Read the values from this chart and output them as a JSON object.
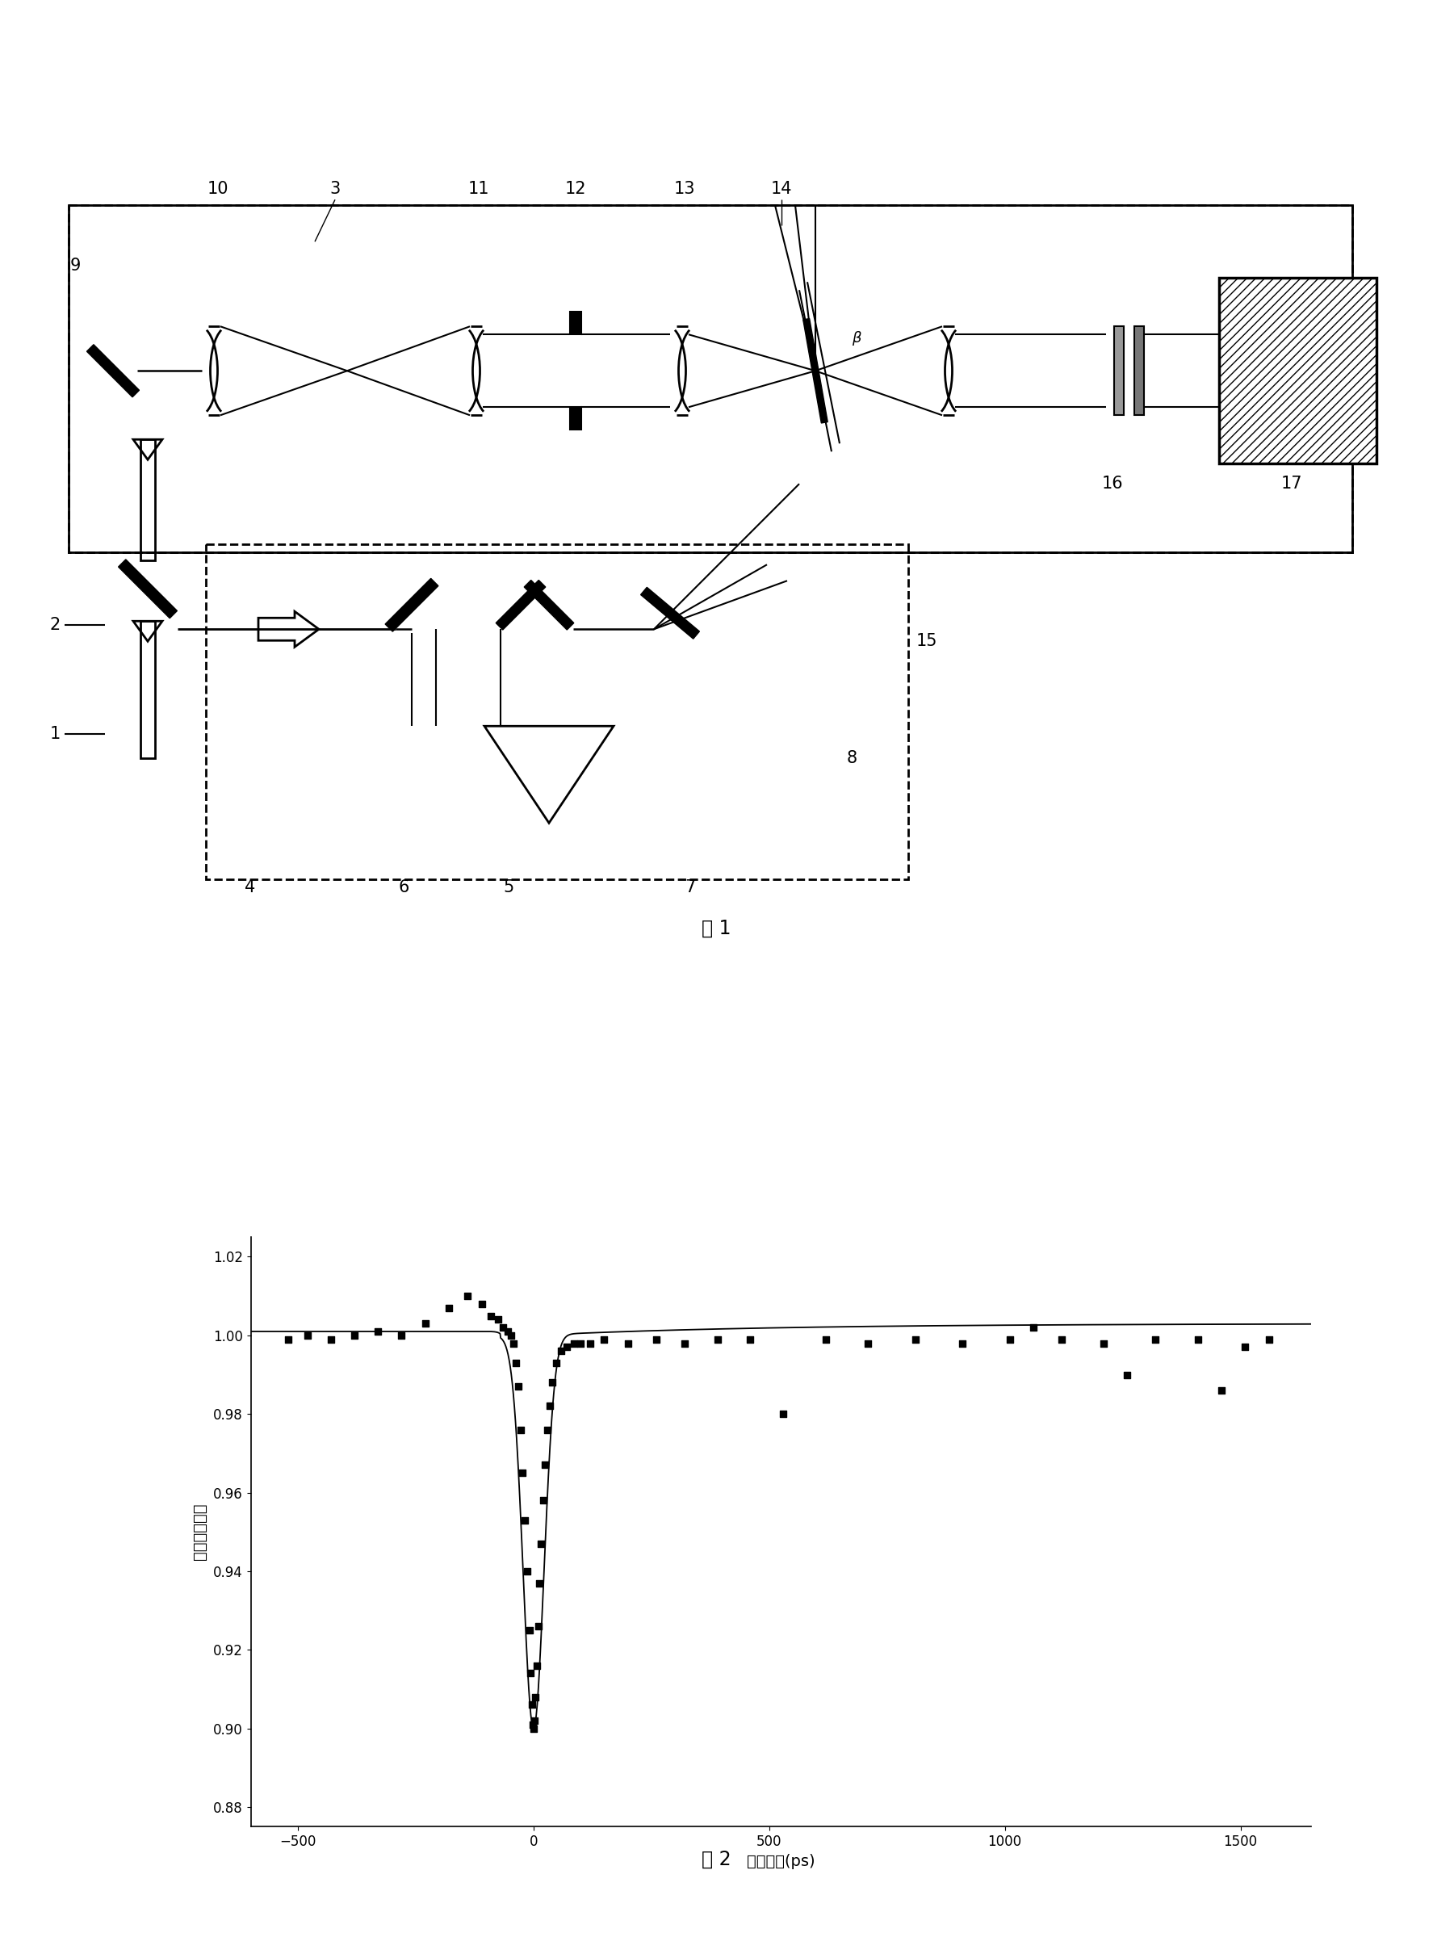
{
  "fig1_label": "图 1",
  "fig2_label": "图 2",
  "graph_xlabel": "延迟时间(ps)",
  "graph_ylabel": "归一化透射率",
  "graph_xticks": [
    -500,
    0,
    500,
    1000,
    1500
  ],
  "graph_yticks": [
    0.88,
    0.9,
    0.92,
    0.94,
    0.96,
    0.98,
    1.0,
    1.02
  ],
  "graph_xlim": [
    -600,
    1650
  ],
  "graph_ylim": [
    0.875,
    1.025
  ],
  "scatter_data": [
    [
      -520,
      0.999
    ],
    [
      -480,
      1.0
    ],
    [
      -430,
      0.999
    ],
    [
      -380,
      1.0
    ],
    [
      -330,
      1.001
    ],
    [
      -280,
      1.0
    ],
    [
      -230,
      1.003
    ],
    [
      -180,
      1.007
    ],
    [
      -140,
      1.01
    ],
    [
      -110,
      1.008
    ],
    [
      -90,
      1.005
    ],
    [
      -75,
      1.004
    ],
    [
      -65,
      1.002
    ],
    [
      -55,
      1.001
    ],
    [
      -48,
      1.0
    ],
    [
      -42,
      0.998
    ],
    [
      -37,
      0.993
    ],
    [
      -33,
      0.987
    ],
    [
      -28,
      0.976
    ],
    [
      -23,
      0.965
    ],
    [
      -18,
      0.953
    ],
    [
      -13,
      0.94
    ],
    [
      -9,
      0.925
    ],
    [
      -6,
      0.914
    ],
    [
      -3,
      0.906
    ],
    [
      -1,
      0.901
    ],
    [
      0,
      0.9
    ],
    [
      2,
      0.902
    ],
    [
      4,
      0.908
    ],
    [
      7,
      0.916
    ],
    [
      10,
      0.926
    ],
    [
      13,
      0.937
    ],
    [
      16,
      0.947
    ],
    [
      20,
      0.958
    ],
    [
      24,
      0.967
    ],
    [
      29,
      0.976
    ],
    [
      34,
      0.982
    ],
    [
      40,
      0.988
    ],
    [
      48,
      0.993
    ],
    [
      58,
      0.996
    ],
    [
      70,
      0.997
    ],
    [
      85,
      0.998
    ],
    [
      100,
      0.998
    ],
    [
      120,
      0.998
    ],
    [
      150,
      0.999
    ],
    [
      200,
      0.998
    ],
    [
      260,
      0.999
    ],
    [
      320,
      0.998
    ],
    [
      390,
      0.999
    ],
    [
      460,
      0.999
    ],
    [
      530,
      0.98
    ],
    [
      620,
      0.999
    ],
    [
      710,
      0.998
    ],
    [
      810,
      0.999
    ],
    [
      910,
      0.998
    ],
    [
      1010,
      0.999
    ],
    [
      1060,
      1.002
    ],
    [
      1120,
      0.999
    ],
    [
      1210,
      0.998
    ],
    [
      1260,
      0.99
    ],
    [
      1320,
      0.999
    ],
    [
      1410,
      0.999
    ],
    [
      1460,
      0.986
    ],
    [
      1510,
      0.997
    ],
    [
      1560,
      0.999
    ]
  ],
  "line_color": "#000000",
  "scatter_color": "#000000",
  "font_size_label": 14,
  "font_size_tick": 12
}
